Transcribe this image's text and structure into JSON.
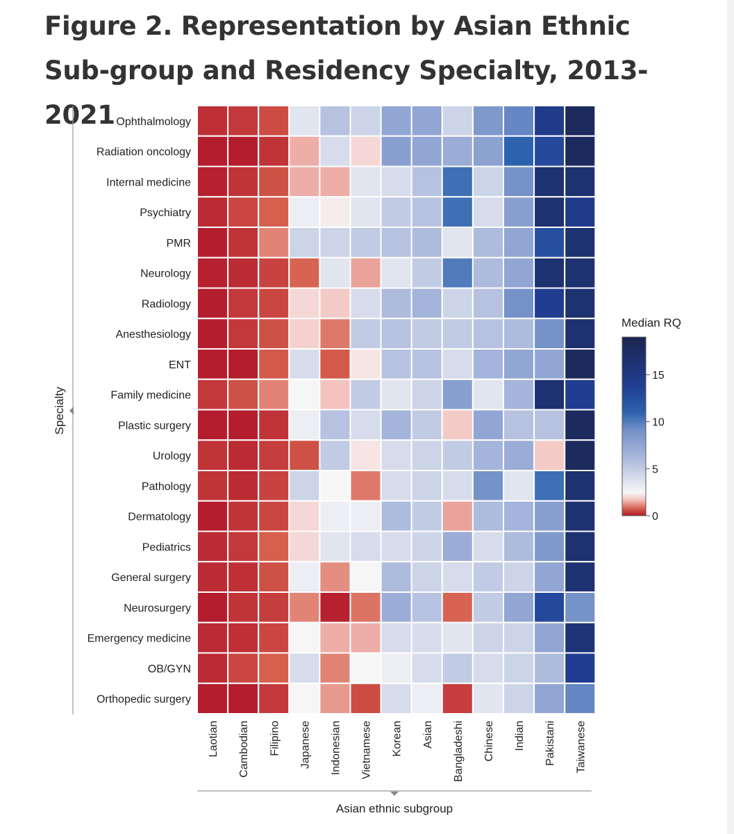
{
  "title": "Figure 2.  Representation by Asian Ethnic Sub-group and Residency Specialty, 2013-2021",
  "chart_data": {
    "type": "heatmap",
    "title": "Figure 2.  Representation by Asian Ethnic Sub-group and Residency Specialty, 2013-2021",
    "xlabel": "Asian ethnic subgroup",
    "ylabel": "Specialty",
    "x_categories": [
      "Laotian",
      "Cambodian",
      "Filipino",
      "Japanese",
      "Indonesian",
      "Vietnamese",
      "Korean",
      "Asian",
      "Bangladeshi",
      "Chinese",
      "Indian",
      "Pakistani",
      "Taiwanese"
    ],
    "y_categories": [
      "Ophthalmology",
      "Radiation oncology",
      "Internal medicine",
      "Psychiatry",
      "PMR",
      "Neurology",
      "Radiology",
      "Anesthesiology",
      "ENT",
      "Family medicine",
      "Plastic surgery",
      "Urology",
      "Pathology",
      "Dermatology",
      "Pediatrics",
      "General surgery",
      "Neurosurgery",
      "Emergency medicine",
      "OB/GYN",
      "Orthopedic surgery"
    ],
    "values": [
      [
        0.25,
        0.35,
        0.55,
        3.5,
        5.5,
        4.5,
        7.5,
        7.5,
        4.5,
        8.5,
        9.5,
        14.5,
        18.0
      ],
      [
        0.05,
        0.05,
        0.3,
        1.5,
        4.0,
        2.0,
        8.0,
        7.5,
        7.0,
        7.8,
        11.0,
        13.0,
        18.0
      ],
      [
        0.1,
        0.3,
        0.6,
        1.5,
        1.5,
        3.5,
        4.0,
        5.5,
        10.5,
        4.5,
        9.0,
        16.5,
        16.5
      ],
      [
        0.2,
        0.5,
        0.75,
        3.0,
        2.3,
        3.5,
        5.0,
        5.5,
        10.5,
        4.0,
        8.0,
        16.5,
        14.5
      ],
      [
        0.05,
        0.3,
        1.1,
        4.5,
        4.5,
        5.0,
        5.5,
        6.0,
        3.5,
        6.0,
        7.5,
        12.5,
        16.5
      ],
      [
        0.1,
        0.2,
        0.45,
        0.8,
        3.5,
        1.4,
        3.5,
        5.0,
        10.0,
        6.0,
        7.5,
        16.5,
        16.5
      ],
      [
        0.05,
        0.35,
        0.5,
        2.0,
        1.8,
        4.0,
        6.0,
        6.5,
        4.5,
        5.5,
        9.0,
        14.0,
        16.5
      ],
      [
        0.05,
        0.35,
        0.6,
        1.9,
        1.0,
        5.0,
        5.5,
        5.0,
        5.0,
        5.5,
        6.0,
        9.0,
        16.5
      ],
      [
        0.05,
        0.05,
        0.7,
        4.0,
        0.7,
        2.2,
        5.5,
        5.5,
        4.0,
        6.5,
        7.5,
        7.5,
        18.0
      ],
      [
        0.35,
        0.6,
        1.1,
        2.5,
        1.7,
        5.0,
        3.5,
        4.5,
        8.0,
        3.5,
        6.5,
        16.5,
        14.0
      ],
      [
        0.05,
        0.05,
        0.3,
        3.0,
        5.5,
        4.0,
        6.5,
        5.0,
        1.8,
        7.5,
        5.5,
        5.5,
        18.0
      ],
      [
        0.3,
        0.2,
        0.4,
        0.6,
        5.0,
        2.2,
        4.0,
        4.5,
        5.0,
        6.5,
        7.0,
        1.8,
        18.0
      ],
      [
        0.3,
        0.2,
        0.45,
        4.5,
        2.5,
        1.0,
        4.0,
        4.5,
        4.0,
        9.0,
        3.5,
        10.5,
        16.5
      ],
      [
        0.05,
        0.3,
        0.5,
        2.0,
        3.0,
        3.0,
        6.0,
        5.0,
        1.4,
        6.0,
        6.5,
        8.0,
        16.5
      ],
      [
        0.2,
        0.35,
        0.75,
        2.0,
        3.5,
        4.0,
        4.0,
        4.5,
        7.0,
        4.0,
        6.0,
        8.5,
        16.5
      ],
      [
        0.2,
        0.25,
        0.6,
        3.0,
        1.2,
        2.5,
        6.0,
        4.5,
        4.0,
        5.0,
        4.5,
        7.5,
        16.5
      ],
      [
        0.05,
        0.3,
        0.4,
        1.1,
        0.1,
        0.95,
        7.0,
        5.5,
        0.8,
        5.0,
        7.5,
        13.0,
        9.0
      ],
      [
        0.2,
        0.25,
        0.5,
        2.5,
        1.5,
        1.5,
        4.0,
        4.0,
        3.5,
        4.5,
        4.5,
        7.5,
        16.0
      ],
      [
        0.2,
        0.5,
        0.75,
        4.0,
        1.1,
        2.5,
        3.0,
        4.0,
        5.0,
        4.0,
        4.5,
        6.0,
        14.0
      ],
      [
        0.05,
        0.05,
        0.35,
        2.5,
        1.3,
        0.55,
        4.0,
        3.0,
        0.4,
        3.5,
        4.5,
        7.5,
        9.5
      ]
    ],
    "colorbar": {
      "label": "Median RQ",
      "range": [
        0,
        19
      ],
      "ticks": [
        0,
        5,
        10,
        15
      ],
      "tick_labels": [
        "0",
        "5",
        "10",
        "15"
      ],
      "colors": {
        "low": "#b2182b",
        "mid": "#f7f7f7",
        "high": "#1b2550"
      }
    }
  }
}
